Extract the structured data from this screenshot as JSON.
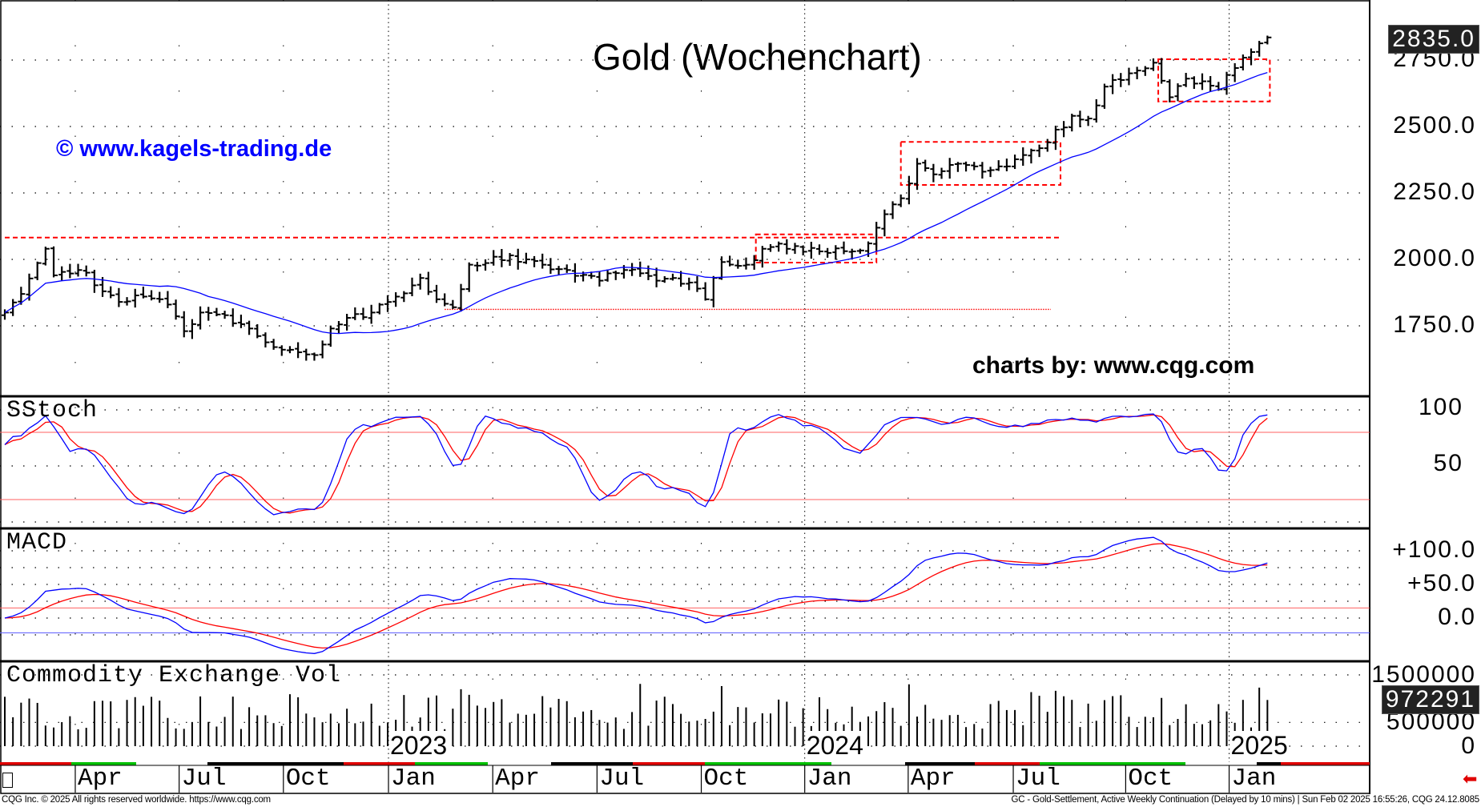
{
  "chart_data": {
    "type": "ohlc",
    "title": "Gold (Wochenchart)",
    "watermark": "© www.kagels-trading.de",
    "credit": "charts by: www.cqg.com",
    "x_unit": "week index (week 0 = early Feb 2022, weekly bars)",
    "weeks": 156,
    "price_axis": {
      "ticks": [
        {
          "v": 2750,
          "label": "2750.0"
        },
        {
          "v": 2500,
          "label": "2500.0"
        },
        {
          "v": 2250,
          "label": "2250.0"
        },
        {
          "v": 2000,
          "label": "2000.0"
        },
        {
          "v": 1750,
          "label": "1750.0"
        }
      ],
      "last_price": 2835,
      "last_price_label": "2835.0"
    },
    "weekly_close_anchors": [
      [
        0,
        1800
      ],
      [
        2,
        1870
      ],
      [
        5,
        2040
      ],
      [
        6,
        1940
      ],
      [
        9,
        1960
      ],
      [
        10,
        1950
      ],
      [
        12,
        1880
      ],
      [
        14,
        1840
      ],
      [
        17,
        1860
      ],
      [
        20,
        1830
      ],
      [
        22,
        1730
      ],
      [
        24,
        1800
      ],
      [
        27,
        1790
      ],
      [
        30,
        1740
      ],
      [
        33,
        1670
      ],
      [
        35,
        1660
      ],
      [
        38,
        1640
      ],
      [
        40,
        1740
      ],
      [
        42,
        1780
      ],
      [
        45,
        1800
      ],
      [
        48,
        1860
      ],
      [
        51,
        1930
      ],
      [
        53,
        1850
      ],
      [
        55,
        1820
      ],
      [
        57,
        1980
      ],
      [
        60,
        2010
      ],
      [
        64,
        2000
      ],
      [
        66,
        1980
      ],
      [
        69,
        1960
      ],
      [
        73,
        1920
      ],
      [
        76,
        1960
      ],
      [
        80,
        1920
      ],
      [
        82,
        1930
      ],
      [
        85,
        1890
      ],
      [
        86,
        1850
      ],
      [
        88,
        1990
      ],
      [
        91,
        1980
      ],
      [
        93,
        2040
      ],
      [
        97,
        2050
      ],
      [
        100,
        2030
      ],
      [
        104,
        2030
      ],
      [
        106,
        2060
      ],
      [
        108,
        2170
      ],
      [
        110,
        2230
      ],
      [
        112,
        2360
      ],
      [
        114,
        2320
      ],
      [
        117,
        2360
      ],
      [
        120,
        2330
      ],
      [
        123,
        2350
      ],
      [
        126,
        2410
      ],
      [
        128,
        2440
      ],
      [
        131,
        2540
      ],
      [
        133,
        2530
      ],
      [
        135,
        2650
      ],
      [
        138,
        2700
      ],
      [
        141,
        2740
      ],
      [
        143,
        2610
      ],
      [
        145,
        2680
      ],
      [
        147,
        2670
      ],
      [
        149,
        2640
      ],
      [
        151,
        2720
      ],
      [
        153,
        2780
      ],
      [
        155,
        2835
      ]
    ],
    "moving_average_period": 20,
    "levels": [
      {
        "name": "resistance",
        "price": 2082,
        "from_week": 0,
        "to_week": 129.6,
        "style": "dashed"
      },
      {
        "name": "support",
        "price": 1812,
        "from_week": 54,
        "to_week": 128.4,
        "style": "dotted"
      }
    ],
    "consolidation_boxes": [
      {
        "from_week": 92.2,
        "to_week": 107,
        "high": 2094,
        "low": 1988
      },
      {
        "from_week": 110,
        "to_week": 129.6,
        "high": 2442,
        "low": 2280
      },
      {
        "from_week": 141.6,
        "to_week": 155.3,
        "high": 2753,
        "low": 2594
      }
    ],
    "sstoch": {
      "label": "SStoch",
      "ticks": [
        {
          "v": 100,
          "label": "100"
        },
        {
          "v": 50,
          "label": "50"
        }
      ],
      "upper": 80,
      "lower": 20,
      "period": 14
    },
    "macd": {
      "label": "MACD",
      "ticks": [
        {
          "v": 100,
          "label": "+100.0"
        },
        {
          "v": 50,
          "label": "+50.0"
        },
        {
          "v": 0,
          "label": "0.0"
        }
      ],
      "ref_red": 15,
      "ref_blue": -22,
      "fast": 12,
      "slow": 26,
      "signal": 9
    },
    "volume": {
      "label": "Commodity Exchange Vol",
      "ticks": [
        {
          "v": 1500000,
          "label": "1500000"
        },
        {
          "v": 500000,
          "label": "500000"
        },
        {
          "v": 0,
          "label": "0"
        }
      ],
      "last": 972291,
      "last_label": "972291"
    },
    "x_axis": {
      "months": [
        {
          "w": 8.65,
          "label": "Apr"
        },
        {
          "w": 21.4,
          "label": "Jul"
        },
        {
          "w": 34.2,
          "label": "Oct"
        },
        {
          "w": 47.1,
          "label": "Jan"
        },
        {
          "w": 59.9,
          "label": "Apr"
        },
        {
          "w": 72.7,
          "label": "Jul"
        },
        {
          "w": 85.5,
          "label": "Oct"
        },
        {
          "w": 98.2,
          "label": "Jan"
        },
        {
          "w": 110.9,
          "label": "Apr"
        },
        {
          "w": 123.8,
          "label": "Jul"
        },
        {
          "w": 137.6,
          "label": "Oct"
        },
        {
          "w": 150.3,
          "label": "Jan"
        }
      ],
      "years": [
        {
          "w": 47.1,
          "label": "2023"
        },
        {
          "w": 98.2,
          "label": "2024"
        },
        {
          "w": 150.3,
          "label": "2025"
        }
      ]
    }
  },
  "footer": {
    "left": "CQG Inc. © 2025 All rights reserved worldwide. https://www.cqg.com",
    "right": "GC - Gold-Settlement, Active Weekly Continuation (Delayed by 10 mins) | Sun Feb 02 2025 16:55:26, CQG 24.12.8085"
  },
  "colors": {
    "bars": "#000000",
    "ma": "#0000ff",
    "k": "#0000ff",
    "d": "#ff0000",
    "box": "#ff0000",
    "watermark": "#0000ff"
  }
}
